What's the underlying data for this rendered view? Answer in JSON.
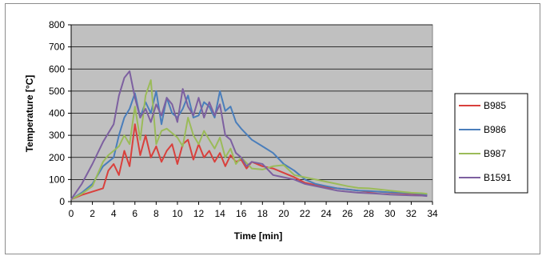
{
  "chart_data": {
    "type": "line",
    "title": "",
    "xlabel": "Time [min]",
    "ylabel": "Temperature  [°C]",
    "xlim": [
      0,
      34
    ],
    "ylim": [
      0,
      800
    ],
    "xticks": [
      0,
      2,
      4,
      6,
      8,
      10,
      12,
      14,
      16,
      18,
      20,
      22,
      24,
      26,
      28,
      30,
      32,
      34
    ],
    "yticks": [
      0,
      100,
      200,
      300,
      400,
      500,
      600,
      700,
      800
    ],
    "grid": "horizontal",
    "plot_background": "#c0c0c0",
    "legend_position": "right",
    "series": [
      {
        "name": "B985",
        "color": "#d9403c",
        "x": [
          0,
          1,
          2,
          3,
          3.5,
          4,
          4.5,
          5,
          5.5,
          6,
          6.5,
          7,
          7.5,
          8,
          8.5,
          9,
          9.5,
          10,
          10.5,
          11,
          11.5,
          12,
          12.5,
          13,
          13.5,
          14,
          14.5,
          15,
          15.5,
          16,
          16.5,
          17,
          18,
          19,
          20,
          21,
          22,
          23,
          24,
          25,
          26,
          27,
          28,
          29,
          30,
          31,
          32,
          33,
          33.5
        ],
        "y": [
          10,
          30,
          45,
          60,
          140,
          170,
          120,
          230,
          160,
          350,
          210,
          300,
          200,
          250,
          180,
          230,
          260,
          170,
          260,
          280,
          190,
          260,
          200,
          230,
          180,
          220,
          160,
          210,
          180,
          190,
          150,
          180,
          160,
          150,
          130,
          110,
          85,
          75,
          65,
          60,
          55,
          50,
          45,
          45,
          40,
          38,
          35,
          33,
          30
        ]
      },
      {
        "name": "B986",
        "color": "#4a7ebb",
        "x": [
          0,
          1,
          2,
          3,
          4,
          4.5,
          5,
          5.5,
          6,
          6.5,
          7,
          7.5,
          8,
          8.5,
          9,
          9.5,
          10,
          10.5,
          11,
          11.5,
          12,
          12.5,
          13,
          13.5,
          14,
          14.5,
          15,
          15.5,
          16,
          17,
          18,
          19,
          20,
          21,
          22,
          23,
          24,
          25,
          26,
          27,
          28,
          29,
          30,
          31,
          32,
          33,
          33.5
        ],
        "y": [
          10,
          40,
          80,
          160,
          200,
          300,
          380,
          420,
          490,
          380,
          450,
          400,
          500,
          350,
          470,
          400,
          380,
          420,
          480,
          380,
          390,
          450,
          430,
          380,
          500,
          410,
          430,
          360,
          330,
          280,
          250,
          220,
          170,
          140,
          100,
          80,
          70,
          60,
          55,
          50,
          48,
          45,
          42,
          40,
          38,
          35,
          32
        ]
      },
      {
        "name": "B987",
        "color": "#9bbb59",
        "x": [
          0,
          1,
          2,
          3,
          3.5,
          4,
          4.5,
          5,
          5.5,
          6,
          6.5,
          7,
          7.5,
          8,
          8.5,
          9,
          9.5,
          10,
          10.5,
          11,
          11.5,
          12,
          12.5,
          13,
          13.5,
          14,
          14.5,
          15,
          15.5,
          16,
          17,
          18,
          19,
          20,
          21,
          22,
          23,
          24,
          25,
          26,
          27,
          28,
          29,
          30,
          31,
          32,
          33,
          33.5
        ],
        "y": [
          10,
          35,
          70,
          180,
          210,
          230,
          250,
          300,
          260,
          430,
          280,
          480,
          550,
          260,
          320,
          330,
          310,
          290,
          250,
          380,
          300,
          260,
          320,
          280,
          240,
          290,
          200,
          240,
          170,
          200,
          150,
          145,
          160,
          165,
          120,
          110,
          100,
          90,
          80,
          70,
          62,
          60,
          55,
          50,
          45,
          40,
          38,
          35
        ]
      },
      {
        "name": "B1591",
        "color": "#7d60a0",
        "x": [
          0,
          1,
          2,
          3,
          4,
          4.5,
          5,
          5.5,
          6,
          6.5,
          7,
          7.5,
          8,
          8.5,
          9,
          9.5,
          10,
          10.5,
          11,
          11.5,
          12,
          12.5,
          13,
          13.5,
          14,
          14.5,
          15,
          15.5,
          16,
          16.5,
          17,
          18,
          19,
          20,
          21,
          22,
          23,
          24,
          25,
          26,
          27,
          28,
          29,
          30,
          31,
          32,
          33,
          33.5
        ],
        "y": [
          10,
          80,
          170,
          270,
          350,
          480,
          560,
          590,
          470,
          380,
          420,
          360,
          440,
          390,
          470,
          440,
          360,
          510,
          430,
          390,
          470,
          380,
          450,
          390,
          440,
          300,
          280,
          220,
          200,
          160,
          180,
          170,
          120,
          110,
          100,
          80,
          70,
          60,
          50,
          45,
          40,
          38,
          35,
          32,
          30,
          28,
          27,
          25
        ]
      }
    ]
  }
}
